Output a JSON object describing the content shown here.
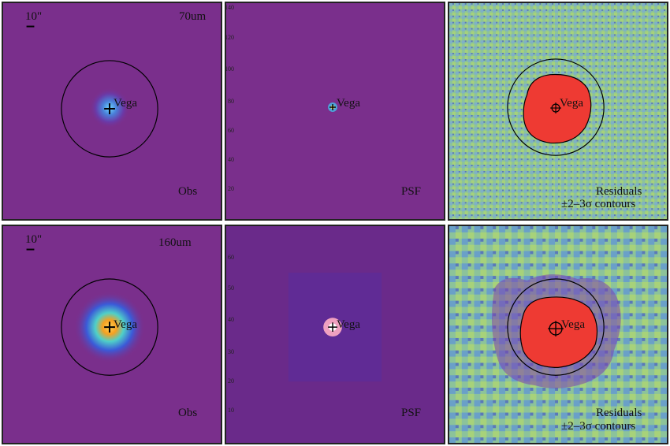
{
  "panels": {
    "top_left": {
      "wavelength": "70um",
      "scale": "10\"",
      "kind": "Obs",
      "source": "Vega"
    },
    "top_mid": {
      "kind": "PSF",
      "source": "Vega",
      "yticks": [
        "20",
        "40",
        "60",
        "80",
        "100",
        "120",
        "140"
      ]
    },
    "top_right": {
      "source": "Vega",
      "note_line1": "Residuals",
      "note_line2": "±2–3σ contours"
    },
    "bot_left": {
      "wavelength": "160um",
      "scale": "10\"",
      "kind": "Obs",
      "source": "Vega"
    },
    "bot_mid": {
      "kind": "PSF",
      "source": "Vega",
      "yticks": [
        "10",
        "20",
        "30",
        "40",
        "50",
        "60"
      ]
    },
    "bot_right": {
      "source": "Vega",
      "note_line1": "Residuals",
      "note_line2": "±2–3σ contours"
    }
  },
  "colors": {
    "background_purple": "#7a2f8c",
    "psf_bg": "#6a2a8a",
    "residual_green": "#8fc59a",
    "residual_red": "#ee3a33",
    "contour": "#000000"
  }
}
